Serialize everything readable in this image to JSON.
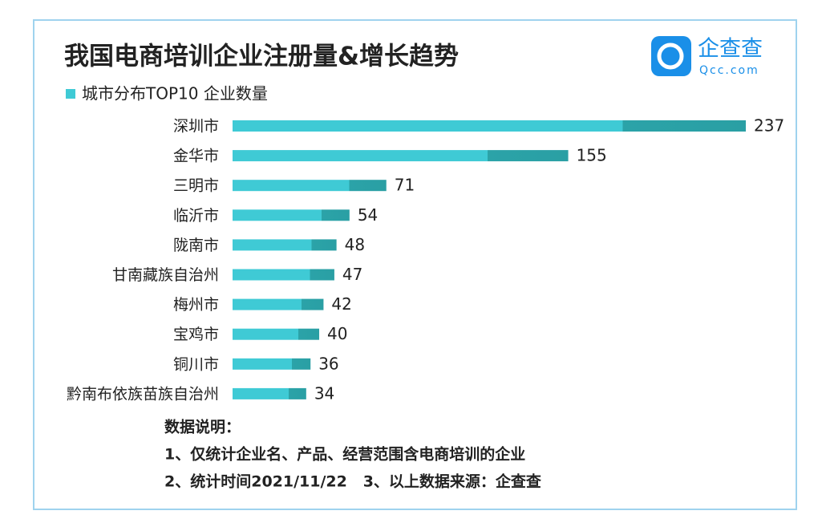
{
  "chart_data": {
    "type": "bar",
    "orientation": "horizontal",
    "title": "我国电商培训企业注册量&增长趋势",
    "legend": "城市分布TOP10 企业数量",
    "categories": [
      "深圳市",
      "金华市",
      "三明市",
      "临沂市",
      "陇南市",
      "甘南藏族自治州",
      "梅州市",
      "宝鸡市",
      "铜川市",
      "黔南布依族苗族自治州"
    ],
    "values": [
      237,
      155,
      71,
      54,
      48,
      47,
      42,
      40,
      36,
      34
    ],
    "color": "#3fcad5",
    "notes": [
      "数据说明：",
      "1、仅统计企业名、产品、经营范围含电商培训的企业",
      "2、统计时间2021/11/22   3、以上数据来源：企查查"
    ],
    "logo": {
      "name": "企查查",
      "site": "Qcc.com"
    }
  }
}
